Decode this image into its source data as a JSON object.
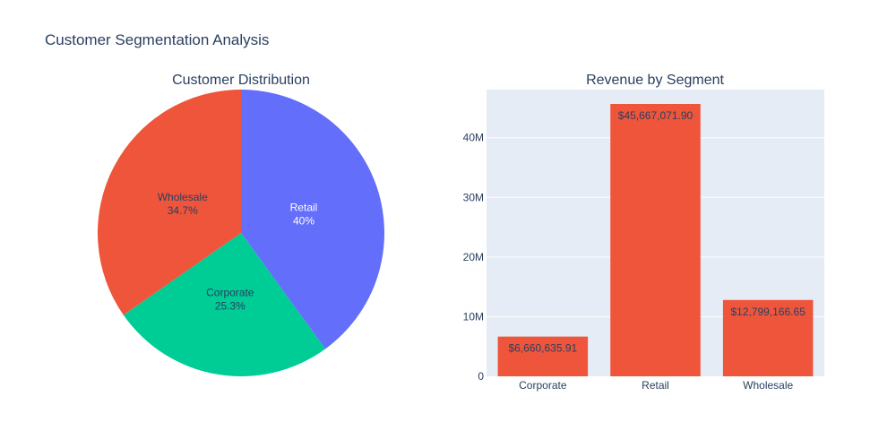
{
  "title": "Customer Segmentation Analysis",
  "chart_data": [
    {
      "type": "pie",
      "title": "Customer Distribution",
      "slices": [
        {
          "label": "Retail",
          "percent": 40.0,
          "percent_text": "40%",
          "color": "#636efa",
          "text_color": "#ffffff"
        },
        {
          "label": "Corporate",
          "percent": 25.3,
          "percent_text": "25.3%",
          "color": "#00cc96",
          "text_color": "#2a3f5f"
        },
        {
          "label": "Wholesale",
          "percent": 34.7,
          "percent_text": "34.7%",
          "color": "#ef553b",
          "text_color": "#2a3f5f"
        }
      ]
    },
    {
      "type": "bar",
      "title": "Revenue by Segment",
      "categories": [
        "Corporate",
        "Retail",
        "Wholesale"
      ],
      "values": [
        6660635.91,
        45667071.9,
        12799166.65
      ],
      "value_labels": [
        "$6,660,635.91",
        "$45,667,071.90",
        "$12,799,166.65"
      ],
      "bar_color": "#ef553b",
      "ylim": [
        0,
        48070602
      ],
      "yticks": [
        0,
        10000000,
        20000000,
        30000000,
        40000000
      ],
      "ytick_labels": [
        "0",
        "10M",
        "20M",
        "30M",
        "40M"
      ],
      "plot_bg": "#e5ecf6",
      "grid": true
    }
  ]
}
